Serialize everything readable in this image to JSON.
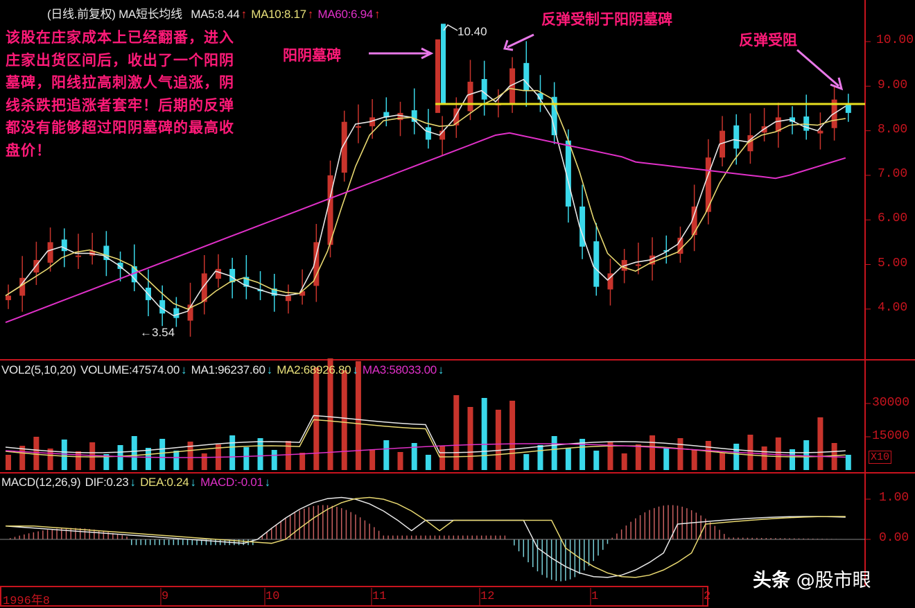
{
  "main_panel": {
    "header": {
      "title": "(日线.前复权) MA短长均线",
      "ma5": "MA5:8.44",
      "ma10": "MA10:8.17",
      "ma60": "MA60:6.94",
      "arrow": "↑"
    },
    "annotation_text": "该股在庄家成本上已经翻番，进入庄家出货区间后，收出了一个阳阴墓碑，阳线拉高刺激人气追涨，阴线杀跌把追涨者套牢！后期的反弹都没有能够超过阳阴墓碑的最高收盘价！",
    "callouts": {
      "tombstone": "阳阴墓碑",
      "rebound_limited": "反弹受制于阳阴墓碑",
      "rebound_blocked": "反弹受阻"
    },
    "price_high": "10.40",
    "price_low": "←3.54",
    "y_axis": [
      "10.00",
      "9.00",
      "8.00",
      "7.00",
      "6.00",
      "5.00",
      "4.00"
    ]
  },
  "volume_panel": {
    "header": {
      "name": "VOL2(5,10,20)",
      "volume": "VOLUME:47574.00",
      "ma1": "MA1:96237.60",
      "ma2": "MA2:68926.80",
      "ma3": "MA3:58033.00",
      "arrow": "↓"
    },
    "y_axis": [
      "30000",
      "15000"
    ],
    "unit": "X10"
  },
  "macd_panel": {
    "header": {
      "name": "MACD(12,26,9)",
      "dif": "DIF:0.23",
      "dea": "DEA:0.24",
      "macd": "MACD:-0.01",
      "arrow": "↓"
    },
    "y_axis": [
      "1.00",
      "0.00"
    ]
  },
  "date_axis": [
    "1996年8",
    "9",
    "10",
    "11",
    "12",
    "1",
    "2"
  ],
  "watermark": {
    "brand": "头条",
    "account": "@股市眼"
  },
  "colors": {
    "up": "#c8342c",
    "down": "#3ad8ea",
    "ma5": "#e8e8e8",
    "ma10": "#e8d870",
    "ma60": "#e030c8",
    "resistance": "#e8e020",
    "axis": "#c8141e",
    "annotation": "#ff1a78"
  },
  "chart_data": [
    {
      "type": "candlestick",
      "title": "(日线.前复权) MA短长均线",
      "ylim": [
        3.4,
        10.6
      ],
      "y_ticks": [
        4,
        5,
        6,
        7,
        8,
        9,
        10
      ],
      "grid": false,
      "x_labels": [
        "1996年8",
        "9",
        "10",
        "11",
        "12",
        "1",
        "2"
      ],
      "series": [
        {
          "name": "MA5",
          "last": 8.44
        },
        {
          "name": "MA10",
          "last": 8.17
        },
        {
          "name": "MA60",
          "last": 6.94
        }
      ],
      "close_path": [
        4.3,
        4.7,
        5.1,
        5.5,
        5.3,
        5.2,
        5.3,
        5.1,
        4.9,
        4.6,
        4.2,
        3.9,
        3.8,
        4.1,
        4.8,
        4.9,
        4.6,
        4.5,
        4.4,
        4.3,
        4.3,
        4.4,
        5.5,
        7.0,
        8.2,
        8.1,
        8.3,
        8.3,
        8.4,
        8.2,
        7.8,
        8.0,
        8.5,
        9.1,
        8.7,
        8.6,
        9.4,
        8.9,
        8.7,
        7.9,
        6.3,
        5.4,
        4.5,
        4.8,
        5.1,
        5.0,
        5.2,
        5.3,
        5.6,
        6.3,
        7.4,
        8.0,
        7.6,
        7.9,
        8.1,
        8.3,
        8.2,
        8.0,
        8.0,
        8.7,
        8.4
      ],
      "key_points": {
        "high": 10.4,
        "low": 3.54,
        "resistance_level": 8.57
      },
      "annotations": [
        "阳阴墓碑",
        "反弹受制于阳阴墓碑",
        "反弹受阻",
        "10.40",
        "3.54"
      ]
    },
    {
      "type": "bar",
      "title": "VOL2(5,10,20)",
      "series": [
        {
          "name": "VOLUME",
          "last": 47574.0
        },
        {
          "name": "MA1",
          "last": 96237.6
        },
        {
          "name": "MA2",
          "last": 68926.8
        },
        {
          "name": "MA3",
          "last": 58033.0
        }
      ],
      "y_ticks": [
        15000,
        30000
      ],
      "unit_multiplier": "X10"
    },
    {
      "type": "line",
      "title": "MACD(12,26,9)",
      "series": [
        {
          "name": "DIF",
          "last": 0.23
        },
        {
          "name": "DEA",
          "last": 0.24
        },
        {
          "name": "MACD",
          "last": -0.01
        }
      ],
      "y_ticks": [
        0.0,
        1.0
      ],
      "ylim": [
        -1.0,
        1.3
      ]
    }
  ]
}
